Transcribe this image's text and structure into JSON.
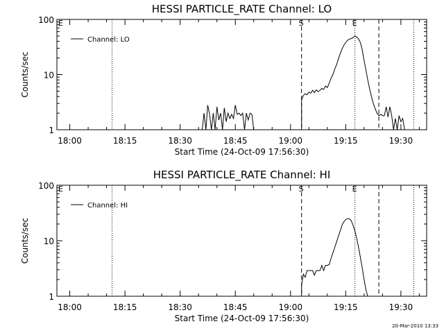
{
  "footer": "20-Mar-2010 13:33",
  "chart_data": [
    {
      "type": "line",
      "title": "HESSI PARTICLE_RATE Channel: LO",
      "xlabel": "Start Time (24-Oct-09 17:56:30)",
      "ylabel": "Counts/sec",
      "yscale": "log",
      "ylim": [
        1,
        100
      ],
      "xlim": [
        "17:56:30",
        "19:37:00"
      ],
      "x_ticks": [
        "18:00",
        "18:15",
        "18:30",
        "18:45",
        "19:00",
        "19:15",
        "19:30"
      ],
      "y_ticks": [
        "1",
        "10",
        "100"
      ],
      "legend": {
        "label": "Channel: LO",
        "position": "top-left"
      },
      "markers": [
        {
          "time": "18:11:30",
          "style": "dotted",
          "label": ""
        },
        {
          "time": "19:03:00",
          "style": "dashed",
          "label": "S"
        },
        {
          "time": "19:17:30",
          "style": "dotted",
          "label": "E"
        },
        {
          "time": "19:24:00",
          "style": "dashed",
          "label": ""
        },
        {
          "time": "19:33:30",
          "style": "dotted",
          "label": ""
        }
      ],
      "corner_label": "E",
      "series": [
        {
          "segments": [
            [
              [
                "18:36:00",
                1
              ],
              [
                "18:36:30",
                2
              ],
              [
                "18:37:00",
                1
              ],
              [
                "18:37:30",
                2.8
              ],
              [
                "18:38:00",
                1.9
              ],
              [
                "18:38:30",
                1
              ],
              [
                "18:39:00",
                2
              ],
              [
                "18:39:30",
                1
              ],
              [
                "18:40:00",
                2.6
              ],
              [
                "18:40:30",
                1.5
              ],
              [
                "18:41:00",
                2
              ],
              [
                "18:41:30",
                1
              ],
              [
                "18:42:00",
                2.5
              ],
              [
                "18:42:30",
                1.4
              ],
              [
                "18:43:00",
                2
              ],
              [
                "18:43:30",
                1.6
              ],
              [
                "18:44:00",
                1.9
              ],
              [
                "18:44:30",
                1.6
              ],
              [
                "18:45:00",
                2.8
              ],
              [
                "18:45:30",
                1.9
              ],
              [
                "18:46:00",
                2
              ],
              [
                "18:46:30",
                1.8
              ],
              [
                "18:47:00",
                2
              ],
              [
                "18:47:30",
                1
              ],
              [
                "18:48:00",
                2
              ],
              [
                "18:48:30",
                1.5
              ],
              [
                "18:49:00",
                2
              ],
              [
                "18:49:30",
                1.9
              ],
              [
                "18:50:00",
                1
              ]
            ],
            [
              [
                "19:03:00",
                1
              ],
              [
                "19:03:00",
                3.5
              ],
              [
                "19:03:30",
                4.2
              ],
              [
                "19:04:00",
                4.5
              ],
              [
                "19:04:30",
                4.3
              ],
              [
                "19:05:00",
                4.8
              ],
              [
                "19:05:30",
                4.6
              ],
              [
                "19:06:00",
                5.2
              ],
              [
                "19:06:30",
                4.7
              ],
              [
                "19:07:00",
                5.3
              ],
              [
                "19:07:30",
                4.9
              ],
              [
                "19:08:00",
                5.2
              ],
              [
                "19:08:30",
                5.6
              ],
              [
                "19:09:00",
                5.4
              ],
              [
                "19:09:30",
                6.2
              ],
              [
                "19:10:00",
                5.8
              ],
              [
                "19:10:30",
                7
              ],
              [
                "19:11:00",
                8.5
              ],
              [
                "19:11:30",
                10
              ],
              [
                "19:12:00",
                12.5
              ],
              [
                "19:12:30",
                15
              ],
              [
                "19:13:00",
                19
              ],
              [
                "19:13:30",
                24
              ],
              [
                "19:14:00",
                29
              ],
              [
                "19:14:30",
                34
              ],
              [
                "19:15:00",
                38
              ],
              [
                "19:15:30",
                42
              ],
              [
                "19:16:00",
                44
              ],
              [
                "19:16:30",
                45
              ],
              [
                "19:17:00",
                47
              ],
              [
                "19:17:30",
                50
              ],
              [
                "19:18:00",
                48
              ],
              [
                "19:18:30",
                44
              ],
              [
                "19:19:00",
                38
              ],
              [
                "19:19:30",
                28
              ],
              [
                "19:20:00",
                18
              ],
              [
                "19:20:30",
                12
              ],
              [
                "19:21:00",
                8
              ],
              [
                "19:21:30",
                5.5
              ],
              [
                "19:22:00",
                4
              ],
              [
                "19:22:30",
                3
              ],
              [
                "19:23:00",
                2.4
              ],
              [
                "19:23:30",
                2
              ],
              [
                "19:24:00",
                1.8
              ],
              [
                "19:24:30",
                1.9
              ],
              [
                "19:25:00",
                1.8
              ],
              [
                "19:25:30",
                1.8
              ],
              [
                "19:26:00",
                2.6
              ],
              [
                "19:26:30",
                1.7
              ],
              [
                "19:27:00",
                2.6
              ],
              [
                "19:27:30",
                1.8
              ],
              [
                "19:28:00",
                1
              ],
              [
                "19:28:30",
                1.6
              ],
              [
                "19:29:00",
                1
              ],
              [
                "19:29:30",
                1.8
              ],
              [
                "19:30:00",
                1.4
              ],
              [
                "19:30:30",
                1.6
              ],
              [
                "19:31:00",
                1
              ]
            ]
          ]
        }
      ]
    },
    {
      "type": "line",
      "title": "HESSI PARTICLE_RATE Channel: HI",
      "xlabel": "Start Time (24-Oct-09 17:56:30)",
      "ylabel": "Counts/sec",
      "yscale": "log",
      "ylim": [
        1,
        100
      ],
      "xlim": [
        "17:56:30",
        "19:37:00"
      ],
      "x_ticks": [
        "18:00",
        "18:15",
        "18:30",
        "18:45",
        "19:00",
        "19:15",
        "19:30"
      ],
      "y_ticks": [
        "1",
        "10",
        "100"
      ],
      "legend": {
        "label": "Channel: HI",
        "position": "top-left"
      },
      "markers": [
        {
          "time": "18:11:30",
          "style": "dotted",
          "label": ""
        },
        {
          "time": "19:03:00",
          "style": "dashed",
          "label": "S"
        },
        {
          "time": "19:17:30",
          "style": "dotted",
          "label": "E"
        },
        {
          "time": "19:24:00",
          "style": "dashed",
          "label": ""
        },
        {
          "time": "19:33:30",
          "style": "dotted",
          "label": ""
        }
      ],
      "corner_label": "E",
      "series": [
        {
          "segments": [
            [
              [
                "19:03:00",
                1
              ],
              [
                "19:03:00",
                1.6
              ],
              [
                "19:03:30",
                2.5
              ],
              [
                "19:04:00",
                2.2
              ],
              [
                "19:04:30",
                2.9
              ],
              [
                "19:05:00",
                2.9
              ],
              [
                "19:05:30",
                2.9
              ],
              [
                "19:06:00",
                2.9
              ],
              [
                "19:06:30",
                2.4
              ],
              [
                "19:07:00",
                2.9
              ],
              [
                "19:07:30",
                2.9
              ],
              [
                "19:08:00",
                2.9
              ],
              [
                "19:08:30",
                3.6
              ],
              [
                "19:09:00",
                2.9
              ],
              [
                "19:09:30",
                3.6
              ],
              [
                "19:10:00",
                3.6
              ],
              [
                "19:10:30",
                3.7
              ],
              [
                "19:11:00",
                4.8
              ],
              [
                "19:11:30",
                6
              ],
              [
                "19:12:00",
                7.5
              ],
              [
                "19:12:30",
                9.5
              ],
              [
                "19:13:00",
                12
              ],
              [
                "19:13:30",
                15
              ],
              [
                "19:14:00",
                19
              ],
              [
                "19:14:30",
                22
              ],
              [
                "19:15:00",
                24
              ],
              [
                "19:15:30",
                25
              ],
              [
                "19:16:00",
                25
              ],
              [
                "19:16:30",
                23
              ],
              [
                "19:17:00",
                19
              ],
              [
                "19:17:30",
                15
              ],
              [
                "19:18:00",
                11
              ],
              [
                "19:18:30",
                7.5
              ],
              [
                "19:19:00",
                5
              ],
              [
                "19:19:30",
                3.2
              ],
              [
                "19:20:00",
                2
              ],
              [
                "19:20:30",
                1.3
              ],
              [
                "19:21:00",
                1
              ]
            ]
          ]
        }
      ]
    }
  ]
}
